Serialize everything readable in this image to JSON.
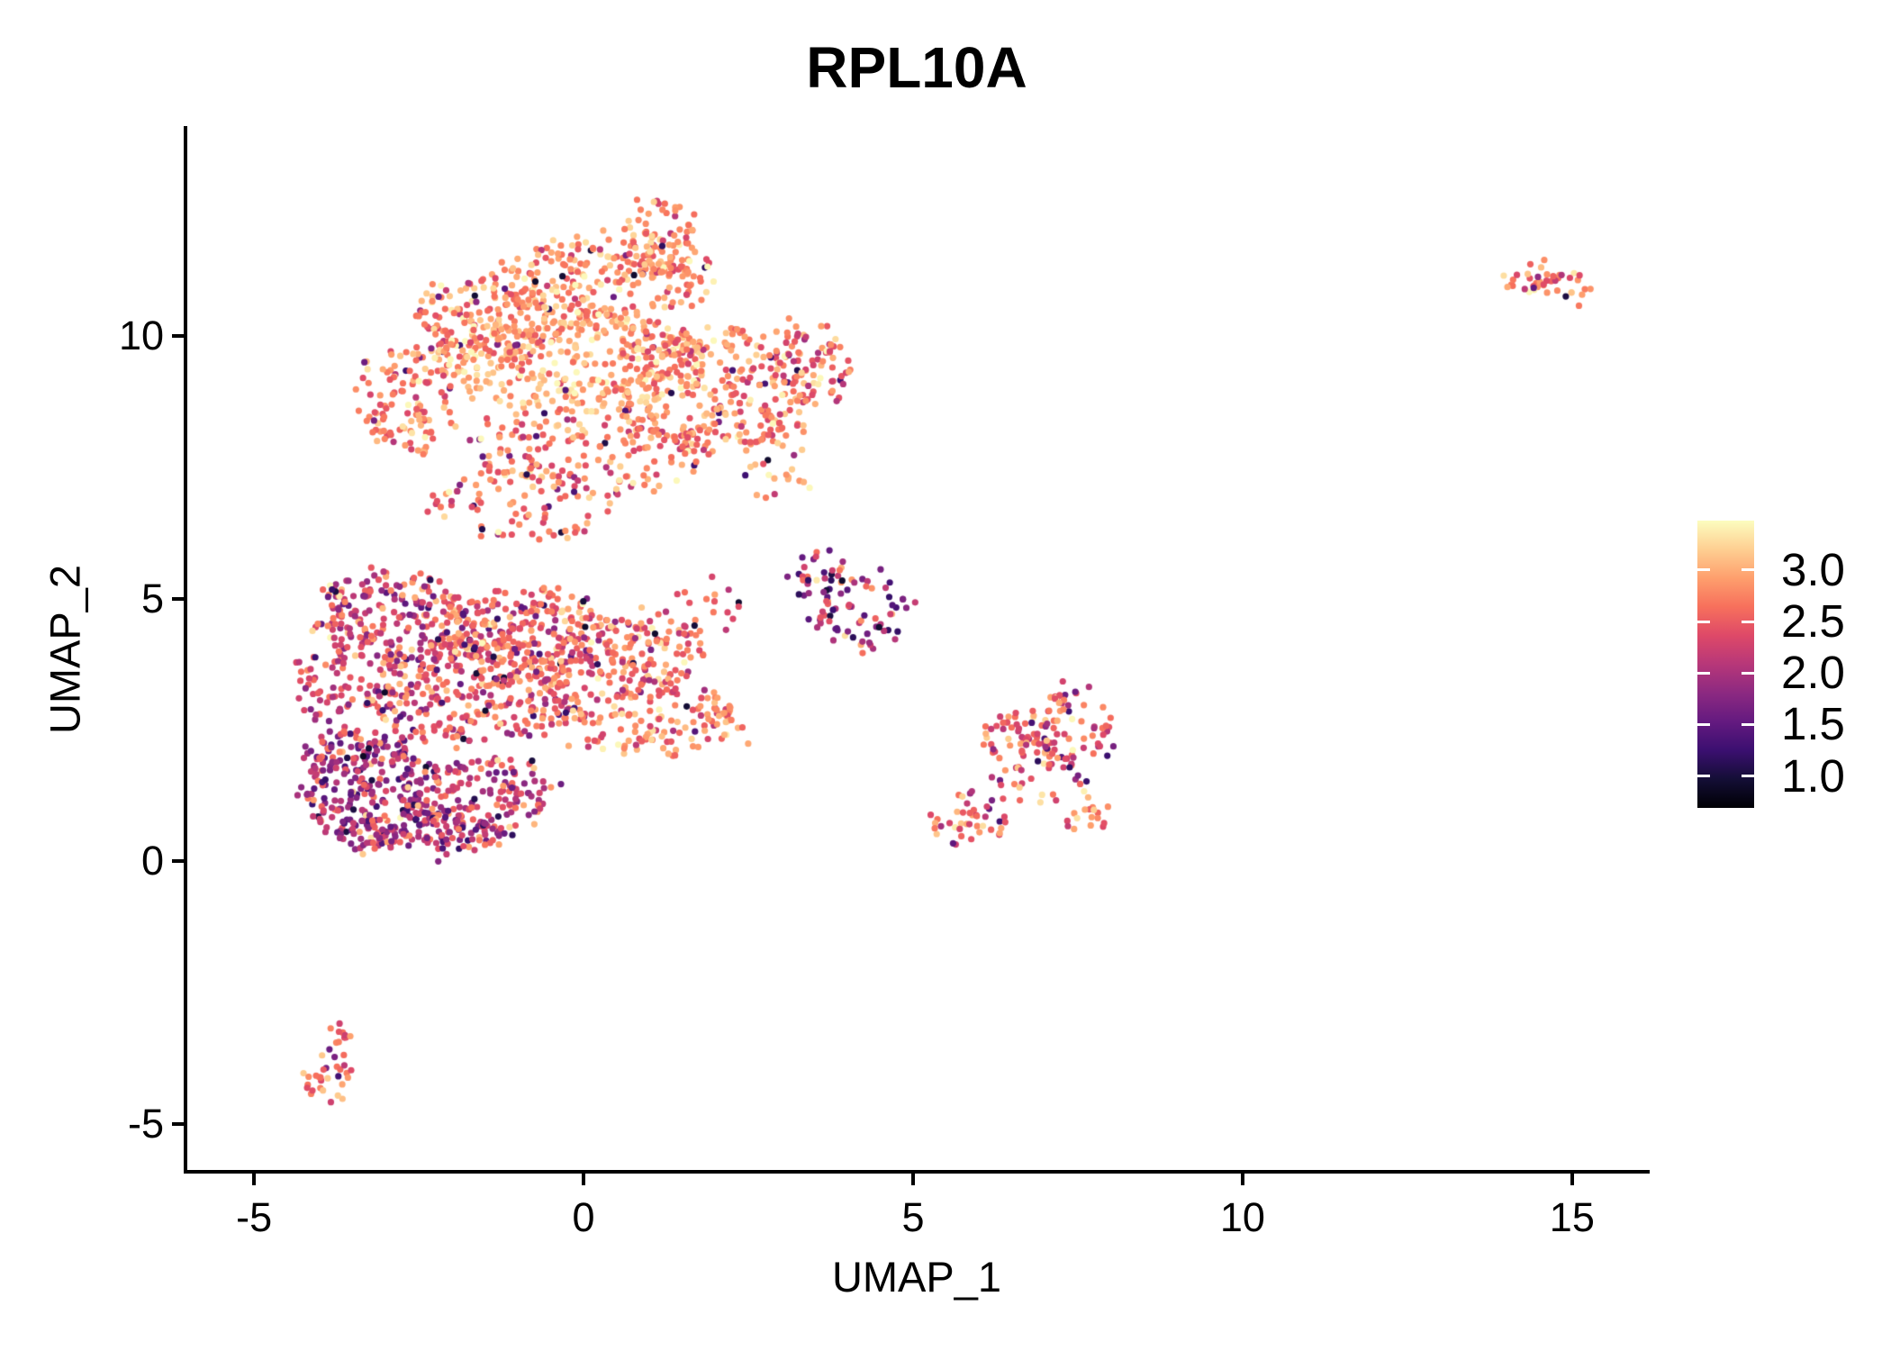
{
  "chart_data": {
    "type": "scatter",
    "title": "RPL10A",
    "xlabel": "UMAP_1",
    "ylabel": "UMAP_2",
    "xlim": [
      -6.04,
      16.15
    ],
    "ylim": [
      -5.91,
      13.96
    ],
    "grid": false,
    "background": "#ffffff",
    "axis_color": "#000000",
    "point_radius_px": 3.6,
    "x_ticks": [
      {
        "v": -5,
        "label": "-5"
      },
      {
        "v": 0,
        "label": "0"
      },
      {
        "v": 5,
        "label": "5"
      },
      {
        "v": 10,
        "label": "10"
      },
      {
        "v": 15,
        "label": "15"
      }
    ],
    "y_ticks": [
      {
        "v": 10,
        "label": "10"
      },
      {
        "v": 5,
        "label": "5"
      },
      {
        "v": 0,
        "label": "0"
      },
      {
        "v": -5,
        "label": "-5"
      }
    ],
    "colorbar": {
      "position": "right",
      "vmin": 0.69,
      "vmax": 3.48,
      "tick_color": "#ffffff",
      "ticks": [
        {
          "v": 3.0,
          "label": "3.0"
        },
        {
          "v": 2.5,
          "label": "2.5"
        },
        {
          "v": 2.0,
          "label": "2.0"
        },
        {
          "v": 1.5,
          "label": "1.5"
        },
        {
          "v": 1.0,
          "label": "1.0"
        }
      ],
      "colormap": "magma",
      "colormap_anchors": [
        {
          "t": 0.0,
          "hex": "#000004"
        },
        {
          "t": 0.1,
          "hex": "#140e36"
        },
        {
          "t": 0.2,
          "hex": "#3b0f70"
        },
        {
          "t": 0.3,
          "hex": "#641a80"
        },
        {
          "t": 0.4,
          "hex": "#8c2981"
        },
        {
          "t": 0.5,
          "hex": "#b73779"
        },
        {
          "t": 0.6,
          "hex": "#de4968"
        },
        {
          "t": 0.7,
          "hex": "#f7705c"
        },
        {
          "t": 0.8,
          "hex": "#fe9f6d"
        },
        {
          "t": 0.9,
          "hex": "#fecf92"
        },
        {
          "t": 1.0,
          "hex": "#fcfdbf"
        }
      ]
    },
    "seed": 7,
    "value_clip": [
      0.72,
      3.45
    ],
    "low_outlier_range": [
      0.9,
      1.7
    ],
    "position_jitter": 0.07,
    "blob_fields": [
      "cx",
      "cy",
      "rx",
      "ry",
      "n",
      "value_mean",
      "value_sd",
      "low_outlier_prob"
    ],
    "clusters": [
      {
        "name": "main-upper-lobe",
        "blobs": [
          [
            1.15,
            11.85,
            0.6,
            0.75,
            70,
            2.8,
            0.33,
            0.02
          ],
          [
            0.3,
            11.05,
            1.7,
            0.85,
            240,
            2.85,
            0.33,
            0.03
          ],
          [
            -1.55,
            10.3,
            1.1,
            0.8,
            140,
            2.8,
            0.34,
            0.03
          ],
          [
            -0.2,
            9.55,
            2.15,
            0.95,
            340,
            2.95,
            0.3,
            0.02
          ],
          [
            -2.7,
            8.75,
            0.8,
            1.1,
            110,
            2.7,
            0.36,
            0.04
          ],
          [
            1.9,
            9.0,
            1.45,
            1.15,
            250,
            2.8,
            0.35,
            0.03
          ],
          [
            3.45,
            9.5,
            0.6,
            0.85,
            80,
            2.65,
            0.38,
            0.05
          ],
          [
            2.95,
            7.7,
            0.55,
            0.95,
            45,
            2.7,
            0.36,
            0.05
          ],
          [
            0.1,
            7.9,
            1.8,
            0.85,
            180,
            2.75,
            0.36,
            0.03
          ],
          [
            -0.9,
            6.85,
            1.4,
            0.75,
            80,
            2.65,
            0.38,
            0.04
          ]
        ]
      },
      {
        "name": "main-lower-lobe",
        "blobs": [
          [
            -2.9,
            4.6,
            1.2,
            0.95,
            220,
            2.35,
            0.42,
            0.06
          ],
          [
            -0.9,
            4.4,
            1.35,
            0.85,
            230,
            2.55,
            0.4,
            0.05
          ],
          [
            0.8,
            4.05,
            1.1,
            0.7,
            130,
            2.6,
            0.38,
            0.04
          ],
          [
            1.95,
            4.9,
            0.6,
            0.45,
            14,
            2.35,
            0.45,
            0.1
          ],
          [
            -1.7,
            3.2,
            1.65,
            1.0,
            330,
            2.45,
            0.42,
            0.06
          ],
          [
            0.9,
            2.75,
            1.35,
            0.75,
            150,
            2.65,
            0.38,
            0.04
          ],
          [
            2.25,
            2.6,
            0.45,
            0.35,
            18,
            2.7,
            0.35,
            0.04
          ],
          [
            -3.3,
            1.35,
            1.0,
            1.1,
            260,
            2.05,
            0.45,
            0.12
          ],
          [
            -1.6,
            1.25,
            1.15,
            0.8,
            170,
            2.3,
            0.45,
            0.07
          ],
          [
            -3.95,
            3.0,
            0.45,
            1.2,
            70,
            2.3,
            0.42,
            0.07
          ],
          [
            -2.4,
            0.55,
            1.3,
            0.4,
            90,
            2.2,
            0.45,
            0.08
          ]
        ]
      },
      {
        "name": "small-purple-cluster",
        "blobs": [
          [
            3.55,
            5.4,
            0.5,
            0.55,
            30,
            2.0,
            0.5,
            0.15
          ],
          [
            4.2,
            4.85,
            0.8,
            0.8,
            65,
            2.05,
            0.5,
            0.15
          ]
        ]
      },
      {
        "name": "mid-right-cluster",
        "blobs": [
          [
            7.3,
            2.5,
            0.78,
            0.78,
            95,
            2.5,
            0.4,
            0.07
          ],
          [
            6.55,
            2.3,
            0.5,
            0.5,
            35,
            2.6,
            0.38,
            0.05
          ],
          [
            6.8,
            1.4,
            1.0,
            0.38,
            26,
            2.45,
            0.42,
            0.08
          ],
          [
            5.85,
            0.75,
            0.6,
            0.45,
            38,
            2.7,
            0.35,
            0.04
          ],
          [
            7.7,
            0.85,
            0.38,
            0.3,
            16,
            2.75,
            0.33,
            0.04
          ]
        ]
      },
      {
        "name": "far-right-cluster",
        "blobs": [
          [
            14.35,
            11.1,
            0.38,
            0.27,
            22,
            2.6,
            0.38,
            0.08
          ],
          [
            14.85,
            11.0,
            0.38,
            0.25,
            22,
            2.7,
            0.35,
            0.05
          ]
        ]
      },
      {
        "name": "bottom-left-cluster",
        "blobs": [
          [
            -3.73,
            -3.45,
            0.2,
            0.45,
            14,
            2.55,
            0.35,
            0.07
          ],
          [
            -3.9,
            -4.2,
            0.32,
            0.45,
            26,
            2.8,
            0.3,
            0.04
          ]
        ]
      }
    ]
  }
}
